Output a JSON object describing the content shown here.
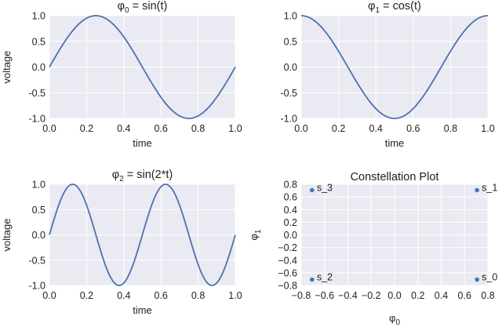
{
  "colors": {
    "panel_bg": "#eaeaf2",
    "grid": "#ffffff",
    "line": "#4c72b0",
    "text": "#222222"
  },
  "chart_data": [
    {
      "type": "line",
      "title": {
        "prefix": "φ",
        "sub": "0",
        "rest": " = sin(t)"
      },
      "xlabel": "time",
      "ylabel": "voltage",
      "xlim": [
        0,
        1
      ],
      "ylim": [
        -1,
        1
      ],
      "xticks": [
        "0.0",
        "0.2",
        "0.4",
        "0.6",
        "0.8",
        "1.0"
      ],
      "yticks": [
        "-1.0",
        "-0.5",
        "0.0",
        "0.5",
        "1.0"
      ],
      "function": "sin(2*pi*t)",
      "grid": true
    },
    {
      "type": "line",
      "title": {
        "prefix": "φ",
        "sub": "1",
        "rest": " = cos(t)"
      },
      "xlabel": "time",
      "ylabel": "",
      "xlim": [
        0,
        1
      ],
      "ylim": [
        -1,
        1
      ],
      "xticks": [
        "0.0",
        "0.2",
        "0.4",
        "0.6",
        "0.8",
        "1.0"
      ],
      "yticks": [
        "-1.0",
        "-0.5",
        "0.0",
        "0.5",
        "1.0"
      ],
      "function": "cos(2*pi*t)",
      "grid": true
    },
    {
      "type": "line",
      "title": {
        "prefix": "φ",
        "sub": "2",
        "rest": " = sin(2*t)"
      },
      "xlabel": "time",
      "ylabel": "voltage",
      "xlim": [
        0,
        1
      ],
      "ylim": [
        -1,
        1
      ],
      "xticks": [
        "0.0",
        "0.2",
        "0.4",
        "0.6",
        "0.8",
        "1.0"
      ],
      "yticks": [
        "-1.0",
        "-0.5",
        "0.0",
        "0.5",
        "1.0"
      ],
      "function": "sin(4*pi*t)",
      "grid": true
    },
    {
      "type": "scatter",
      "title": "Constellation Plot",
      "xlabel": {
        "prefix": "φ",
        "sub": "0"
      },
      "ylabel": {
        "prefix": "φ",
        "sub": "1"
      },
      "xlim": [
        -0.8,
        0.8
      ],
      "ylim": [
        -0.8,
        0.8
      ],
      "xticks": [
        "−0.8",
        "−0.6",
        "−0.4",
        "−0.2",
        "0.0",
        "0.2",
        "0.4",
        "0.6",
        "0.8"
      ],
      "yticks": [
        "−0.8",
        "−0.6",
        "−0.4",
        "−0.2",
        "0.0",
        "0.2",
        "0.4",
        "0.6",
        "0.8"
      ],
      "points": [
        {
          "label": "s_0",
          "x": 0.707,
          "y": -0.707
        },
        {
          "label": "s_1",
          "x": 0.707,
          "y": 0.707
        },
        {
          "label": "s_2",
          "x": -0.707,
          "y": -0.707
        },
        {
          "label": "s_3",
          "x": -0.707,
          "y": 0.707
        }
      ],
      "grid": true
    }
  ]
}
